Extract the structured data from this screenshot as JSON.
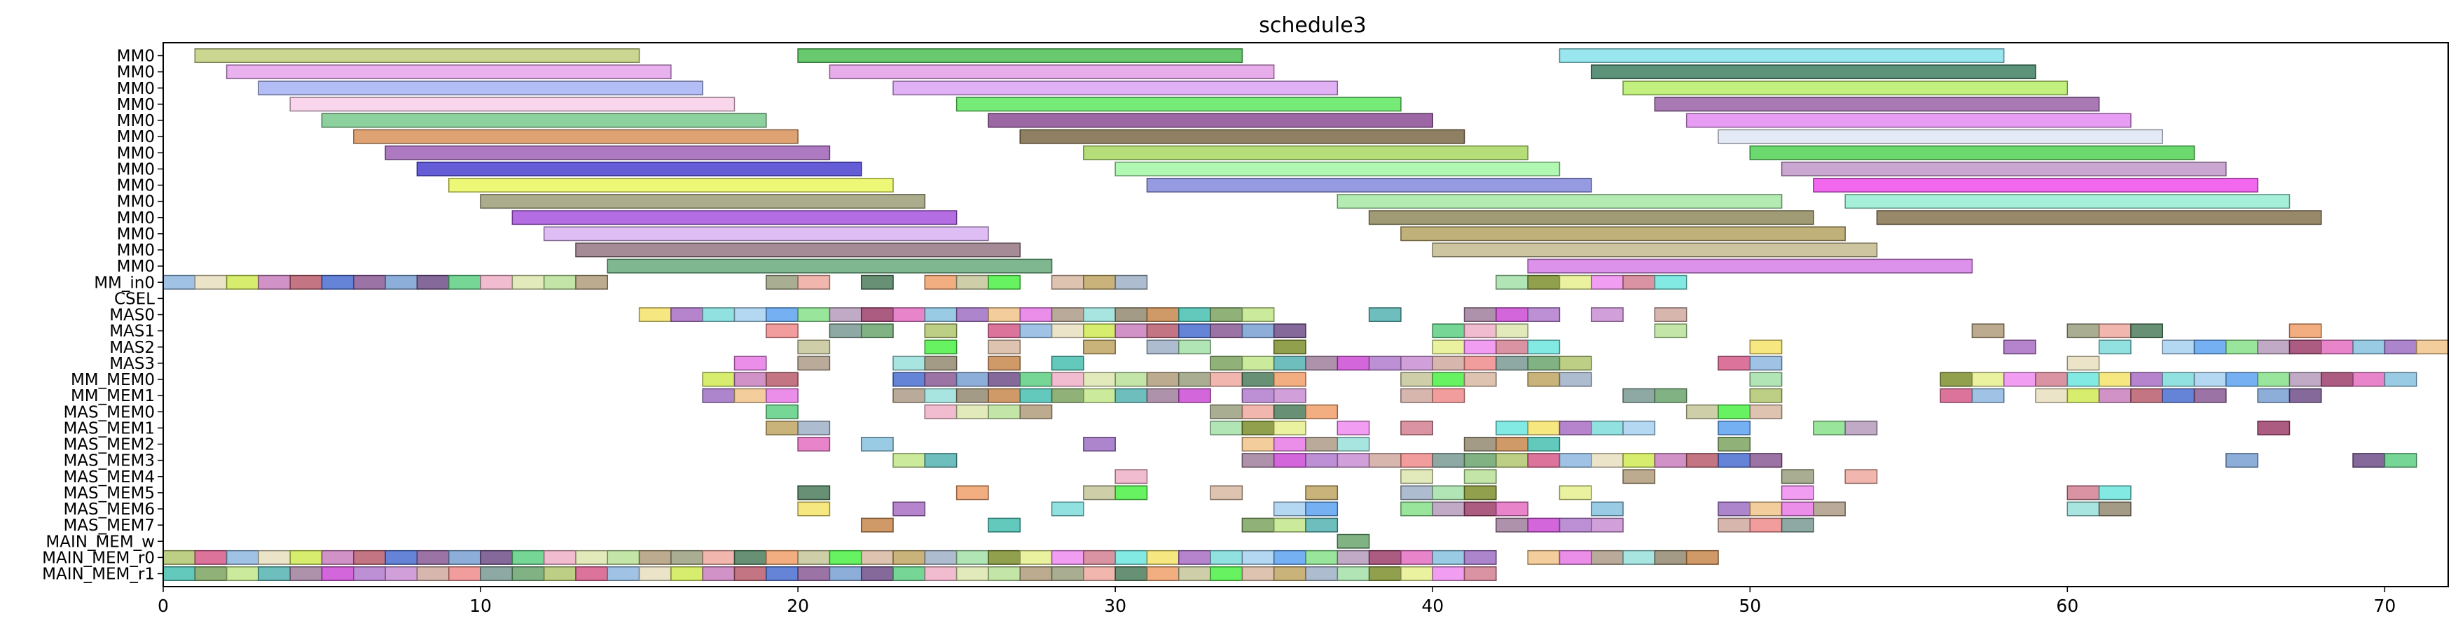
{
  "chart_data": {
    "type": "gantt",
    "title": "schedule3",
    "xlabel": "",
    "ylabel": "",
    "xlim": [
      0,
      72
    ],
    "x_ticks": [
      0,
      10,
      20,
      30,
      40,
      50,
      60,
      70
    ],
    "grid": false,
    "rows": [
      "MM0",
      "MM0",
      "MM0",
      "MM0",
      "MM0",
      "MM0",
      "MM0",
      "MM0",
      "MM0",
      "MM0",
      "MM0",
      "MM0",
      "MM0",
      "MM0",
      "MM_in0",
      "CSEL",
      "MAS0",
      "MAS1",
      "MAS2",
      "MAS3",
      "MM_MEM0",
      "MM_MEM1",
      "MAS_MEM0",
      "MAS_MEM1",
      "MAS_MEM2",
      "MAS_MEM3",
      "MAS_MEM4",
      "MAS_MEM5",
      "MAS_MEM6",
      "MAS_MEM7",
      "MAIN_MEM_w",
      "MAIN_MEM_r0",
      "MAIN_MEM_r1"
    ],
    "explicit_bars": [
      {
        "row": 0,
        "start": 1,
        "end": 15,
        "color": "#c2cf7e"
      },
      {
        "row": 0,
        "start": 20,
        "end": 34,
        "color": "#4fbf55"
      },
      {
        "row": 0,
        "start": 44,
        "end": 58,
        "color": "#88e2ec"
      },
      {
        "row": 1,
        "start": 2,
        "end": 16,
        "color": "#e6a3ec"
      },
      {
        "row": 1,
        "start": 21,
        "end": 35,
        "color": "#e39fe6"
      },
      {
        "row": 1,
        "start": 45,
        "end": 59,
        "color": "#3f7f62"
      },
      {
        "row": 2,
        "start": 3,
        "end": 17,
        "color": "#a7b3f4"
      },
      {
        "row": 2,
        "start": 23,
        "end": 37,
        "color": "#dba3f2"
      },
      {
        "row": 2,
        "start": 46,
        "end": 60,
        "color": "#b7ed68"
      },
      {
        "row": 3,
        "start": 4,
        "end": 18,
        "color": "#f8cfe9"
      },
      {
        "row": 3,
        "start": 25,
        "end": 39,
        "color": "#5ee860"
      },
      {
        "row": 3,
        "start": 47,
        "end": 61,
        "color": "#9a62a6"
      },
      {
        "row": 4,
        "start": 5,
        "end": 19,
        "color": "#78c98d"
      },
      {
        "row": 4,
        "start": 26,
        "end": 40,
        "color": "#8c4c96"
      },
      {
        "row": 4,
        "start": 48,
        "end": 62,
        "color": "#e38cf1"
      },
      {
        "row": 5,
        "start": 6,
        "end": 20,
        "color": "#d8925a"
      },
      {
        "row": 5,
        "start": 27,
        "end": 41,
        "color": "#7d6a48"
      },
      {
        "row": 5,
        "start": 49,
        "end": 63,
        "color": "#dfe5f4"
      },
      {
        "row": 6,
        "start": 7,
        "end": 21,
        "color": "#9f62b6"
      },
      {
        "row": 6,
        "start": 29,
        "end": 43,
        "color": "#a8d860"
      },
      {
        "row": 6,
        "start": 50,
        "end": 64,
        "color": "#52d256"
      },
      {
        "row": 7,
        "start": 8,
        "end": 22,
        "color": "#4a40d1"
      },
      {
        "row": 7,
        "start": 30,
        "end": 44,
        "color": "#a3f7a6"
      },
      {
        "row": 7,
        "start": 51,
        "end": 65,
        "color": "#c198c8"
      },
      {
        "row": 8,
        "start": 9,
        "end": 23,
        "color": "#eaf75e"
      },
      {
        "row": 8,
        "start": 31,
        "end": 45,
        "color": "#8388dc"
      },
      {
        "row": 8,
        "start": 52,
        "end": 66,
        "color": "#ee4eeb"
      },
      {
        "row": 9,
        "start": 10,
        "end": 24,
        "color": "#9c9d78"
      },
      {
        "row": 9,
        "start": 37,
        "end": 51,
        "color": "#a7e7a6"
      },
      {
        "row": 9,
        "start": 53,
        "end": 67,
        "color": "#97ecd2"
      },
      {
        "row": 10,
        "start": 11,
        "end": 25,
        "color": "#a853df"
      },
      {
        "row": 10,
        "start": 38,
        "end": 52,
        "color": "#8f8a5c"
      },
      {
        "row": 10,
        "start": 54,
        "end": 68,
        "color": "#867451"
      },
      {
        "row": 11,
        "start": 12,
        "end": 26,
        "color": "#d8b1f2"
      },
      {
        "row": 11,
        "start": 39,
        "end": 53,
        "color": "#b5a263"
      },
      {
        "row": 12,
        "start": 13,
        "end": 27,
        "color": "#947784"
      },
      {
        "row": 12,
        "start": 40,
        "end": 54,
        "color": "#c3bb8f"
      },
      {
        "row": 13,
        "start": 14,
        "end": 28,
        "color": "#68ab7c"
      },
      {
        "row": 13,
        "start": 43,
        "end": 57,
        "color": "#d67ee6"
      }
    ],
    "pattern_rows": [
      {
        "row": 14,
        "segments": [
          [
            0,
            14
          ],
          [
            19,
            21
          ],
          [
            22,
            23
          ],
          [
            24,
            27
          ],
          [
            28,
            31
          ],
          [
            42,
            48
          ]
        ]
      },
      {
        "row": 16,
        "segments": [
          [
            15,
            35
          ],
          [
            38,
            39
          ],
          [
            41,
            44
          ],
          [
            45,
            46
          ],
          [
            47,
            48
          ]
        ]
      },
      {
        "row": 17,
        "segments": [
          [
            19,
            20
          ],
          [
            21,
            23
          ],
          [
            24,
            25
          ],
          [
            26,
            36
          ],
          [
            40,
            43
          ],
          [
            47,
            48
          ],
          [
            57,
            58
          ],
          [
            60,
            63
          ],
          [
            67,
            68
          ]
        ]
      },
      {
        "row": 18,
        "segments": [
          [
            20,
            21
          ],
          [
            24,
            25
          ],
          [
            26,
            27
          ],
          [
            29,
            30
          ],
          [
            31,
            33
          ],
          [
            35,
            36
          ],
          [
            40,
            44
          ],
          [
            50,
            51
          ],
          [
            58,
            59
          ],
          [
            61,
            62
          ],
          [
            63,
            72
          ]
        ]
      },
      {
        "row": 19,
        "segments": [
          [
            18,
            19
          ],
          [
            20,
            21
          ],
          [
            23,
            24
          ],
          [
            24,
            25
          ],
          [
            26,
            27
          ],
          [
            28,
            29
          ],
          [
            33,
            45
          ],
          [
            49,
            51
          ],
          [
            60,
            61
          ]
        ]
      },
      {
        "row": 20,
        "segments": [
          [
            17,
            20
          ],
          [
            23,
            36
          ],
          [
            39,
            42
          ],
          [
            43,
            45
          ],
          [
            50,
            51
          ],
          [
            56,
            59
          ],
          [
            59,
            71
          ]
        ]
      },
      {
        "row": 21,
        "segments": [
          [
            17,
            20
          ],
          [
            23,
            33
          ],
          [
            34,
            36
          ],
          [
            39,
            41
          ],
          [
            46,
            48
          ],
          [
            50,
            51
          ],
          [
            56,
            58
          ],
          [
            59,
            65
          ],
          [
            66,
            68
          ]
        ]
      },
      {
        "row": 22,
        "segments": [
          [
            19,
            20
          ],
          [
            24,
            28
          ],
          [
            33,
            37
          ],
          [
            48,
            51
          ]
        ]
      },
      {
        "row": 23,
        "segments": [
          [
            19,
            21
          ],
          [
            33,
            36
          ],
          [
            37,
            38
          ],
          [
            39,
            40
          ],
          [
            42,
            47
          ],
          [
            49,
            50
          ],
          [
            52,
            54
          ],
          [
            66,
            67
          ]
        ]
      },
      {
        "row": 24,
        "segments": [
          [
            20,
            21
          ],
          [
            22,
            23
          ],
          [
            29,
            30
          ],
          [
            34,
            38
          ],
          [
            41,
            44
          ],
          [
            49,
            50
          ]
        ]
      },
      {
        "row": 25,
        "segments": [
          [
            23,
            25
          ],
          [
            34,
            51
          ],
          [
            65,
            66
          ],
          [
            69,
            71
          ]
        ]
      },
      {
        "row": 26,
        "segments": [
          [
            30,
            31
          ],
          [
            39,
            40
          ],
          [
            41,
            42
          ],
          [
            46,
            47
          ],
          [
            51,
            52
          ],
          [
            53,
            54
          ]
        ]
      },
      {
        "row": 27,
        "segments": [
          [
            20,
            21
          ],
          [
            25,
            26
          ],
          [
            29,
            31
          ],
          [
            33,
            34
          ],
          [
            36,
            37
          ],
          [
            39,
            42
          ],
          [
            44,
            45
          ],
          [
            51,
            52
          ],
          [
            60,
            62
          ]
        ]
      },
      {
        "row": 28,
        "segments": [
          [
            20,
            21
          ],
          [
            23,
            24
          ],
          [
            28,
            29
          ],
          [
            35,
            37
          ],
          [
            39,
            43
          ],
          [
            45,
            46
          ],
          [
            49,
            53
          ],
          [
            60,
            62
          ]
        ]
      },
      {
        "row": 29,
        "segments": [
          [
            22,
            23
          ],
          [
            26,
            27
          ],
          [
            34,
            37
          ],
          [
            42,
            46
          ],
          [
            49,
            52
          ]
        ]
      },
      {
        "row": 30,
        "segments": [
          [
            37,
            38
          ]
        ]
      },
      {
        "row": 31,
        "segments": [
          [
            0,
            15
          ],
          [
            15,
            34
          ],
          [
            34,
            42
          ],
          [
            43,
            47
          ],
          [
            47,
            49
          ]
        ]
      },
      {
        "row": 32,
        "segments": [
          [
            0,
            14
          ],
          [
            14,
            42
          ]
        ]
      }
    ],
    "palette": [
      "#8eb7e0",
      "#99e0dc",
      "#ee8cf0",
      "#5ecf84",
      "#b27ccf",
      "#b59bbb",
      "#c6c79a",
      "#e8dfc0",
      "#948a71",
      "#d38092",
      "#f0b0c8",
      "#c98fd3",
      "#9c3f6a",
      "#4cf047",
      "#cfea53",
      "#c7874d",
      "#6de6de",
      "#dde6b0",
      "#d0a9a0",
      "#e46fc1",
      "#d7b9a2",
      "#c87fbd",
      "#46bfb0",
      "#f5e36a",
      "#b8e098",
      "#f08c8c",
      "#87c2e0",
      "#bfa663",
      "#b85d6d",
      "#7da35f",
      "#a86fc4",
      "#b09c7a",
      "#7a9a93",
      "#9e70c4",
      "#9fb0c6",
      "#4a6fd1",
      "#c2e68a",
      "#7fdcdc",
      "#9aa07f",
      "#6aa56f",
      "#f1c48a",
      "#a5e0a8",
      "#8a5b94",
      "#53b3b0",
      "#a7d1f0",
      "#eeaaa0",
      "#b1c76e",
      "#e67ae6",
      "#7e8f2e",
      "#7aa0d4",
      "#a07f9c",
      "#5da3f0",
      "#4c7d5c",
      "#d55b8a",
      "#ae9b87",
      "#e6f08f",
      "#6f4f88",
      "#cb4bd3",
      "#87e08b",
      "#f0a06a"
    ]
  }
}
